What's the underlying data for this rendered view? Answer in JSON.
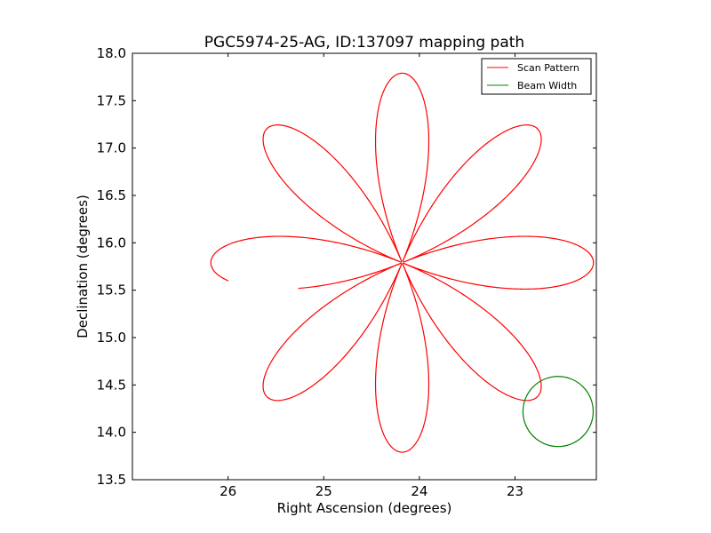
{
  "chart_data": {
    "type": "line",
    "title": "PGC5974-25-AG, ID:137097 mapping path",
    "xlabel": "Right Ascension (degrees)",
    "ylabel": "Declination (degrees)",
    "xlim": [
      27.0,
      22.15
    ],
    "ylim": [
      13.5,
      18.0
    ],
    "x_inverted": true,
    "x_ticks": [
      26,
      25,
      24,
      23
    ],
    "x_tick_labels": [
      "26",
      "25",
      "24",
      "23"
    ],
    "y_ticks": [
      13.5,
      14.0,
      14.5,
      15.0,
      15.5,
      16.0,
      16.5,
      17.0,
      17.5,
      18.0
    ],
    "y_tick_labels": [
      "13.5",
      "14.0",
      "14.5",
      "15.0",
      "15.5",
      "16.0",
      "16.5",
      "17.0",
      "17.5",
      "18.0"
    ],
    "grid": false,
    "legend_position": "top-right",
    "series": [
      {
        "name": "Scan Pattern",
        "color": "#ff0000",
        "center": [
          24.18,
          15.79
        ],
        "petals": 8,
        "radius_x_deg": 2.0,
        "radius_y_deg": 2.0,
        "start_angle_deg": -6,
        "sweep_deg": 352
      },
      {
        "name": "Beam Width",
        "color": "#008000",
        "center": [
          22.55,
          14.22
        ],
        "radius_x_deg": 0.367,
        "radius_y_deg": 0.37
      }
    ]
  }
}
